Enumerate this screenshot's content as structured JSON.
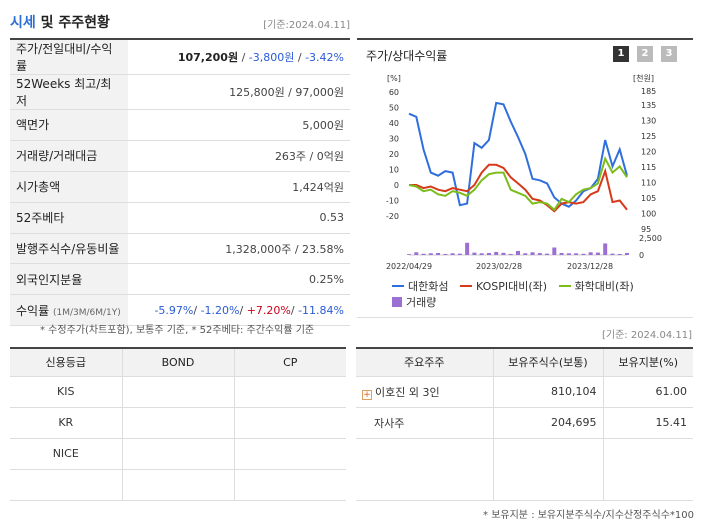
{
  "header": {
    "title_hl": "시세",
    "title_rest": " 및 주주현황",
    "date": "[기준:2024.04.11]"
  },
  "quote": {
    "rows": [
      {
        "label": "주가/전일대비/수익률",
        "price": "107,200원",
        "change": "-3,800원",
        "rate": "-3.42%"
      },
      {
        "label": "52Weeks 최고/최저",
        "value": "125,800원 / 97,000원"
      },
      {
        "label": "액면가",
        "value": "5,000원"
      },
      {
        "label": "거래량/거래대금",
        "value": "263주 / 0억원"
      },
      {
        "label": "시가총액",
        "value": "1,424억원"
      },
      {
        "label": "52주베타",
        "value": "0.53"
      },
      {
        "label": "발행주식수/유동비율",
        "value": "1,328,000주 / 23.58%"
      },
      {
        "label": "외국인지분율",
        "value": "0.25%"
      },
      {
        "label": "수익률",
        "label_sub": "(1M/3M/6M/1Y)",
        "r1": "-5.97%",
        "r2": "-1.20%",
        "r3": "+7.20%",
        "r4": "-11.84%"
      }
    ],
    "note": "* 수정주가(차트포함), 보통주 기준, * 52주베타: 주간수익률 기준"
  },
  "chart_panel": {
    "title": "주가/상대수익률",
    "buttons": [
      "1",
      "2",
      "3"
    ]
  },
  "chart_data": {
    "type": "line",
    "left_axis_label": "[%]",
    "right_axis_label": "[천원]",
    "left_ticks": [
      60,
      50,
      40,
      30,
      20,
      10,
      0,
      -10,
      -20
    ],
    "right_ticks": [
      135,
      130,
      125,
      120,
      115,
      110,
      105,
      100,
      95
    ],
    "right_top_tick": "185",
    "volume_ticks": [
      "2,500",
      "0"
    ],
    "x_labels": [
      "2022/04/29",
      "2023/02/28",
      "2023/12/28"
    ],
    "ylim_left": [
      -20,
      60
    ],
    "series": [
      {
        "name": "대한화섬",
        "color": "#2f6fdd",
        "values": [
          46,
          44,
          23,
          8,
          6,
          9,
          8,
          -13,
          -12,
          27,
          24,
          29,
          53,
          52,
          41,
          31,
          20,
          4,
          3,
          1,
          -8,
          -12,
          -14,
          -10,
          -4,
          -2,
          4,
          29,
          12,
          23,
          6
        ]
      },
      {
        "name": "KOSPI대비(좌)",
        "color": "#d63a1a",
        "values": [
          0,
          0,
          -2,
          -1,
          -3,
          -4,
          -2,
          -3,
          -4,
          0,
          8,
          13,
          13,
          11,
          5,
          1,
          -3,
          -9,
          -10,
          -13,
          -17,
          -12,
          -11,
          -12,
          -11,
          -6,
          -4,
          9,
          -11,
          -10,
          -16
        ]
      },
      {
        "name": "화학대비(좌)",
        "color": "#7cbc1c",
        "values": [
          0,
          -1,
          -4,
          -3,
          -6,
          -7,
          -4,
          -5,
          -7,
          -3,
          3,
          7,
          8,
          8,
          -3,
          -5,
          -7,
          -12,
          -11,
          -12,
          -16,
          -9,
          -11,
          -6,
          -3,
          -2,
          1,
          17,
          8,
          12,
          5
        ]
      }
    ],
    "volume": {
      "name": "거래량",
      "color": "#9b6fd4",
      "values": [
        120,
        400,
        180,
        250,
        300,
        150,
        250,
        200,
        1800,
        350,
        250,
        300,
        450,
        320,
        150,
        600,
        250,
        400,
        280,
        200,
        1100,
        300,
        250,
        250,
        180,
        400,
        350,
        1700,
        200,
        150,
        300
      ]
    },
    "volume_max": 2500
  },
  "date2": "[기준: 2024.04.11]",
  "credit": {
    "headers": [
      "신용등급",
      "BOND",
      "CP"
    ],
    "rows": [
      "KIS",
      "KR",
      "NICE",
      ""
    ]
  },
  "holders": {
    "headers": [
      "주요주주",
      "보유주식수(보통)",
      "보유지분(%)"
    ],
    "rows": [
      {
        "name": "이호진 외 3인",
        "shares": "810,104",
        "pct": "61.00"
      },
      {
        "name": "자사주",
        "shares": "204,695",
        "pct": "15.41"
      },
      {
        "name": "",
        "shares": "",
        "pct": ""
      }
    ],
    "note": "* 보유지분 : 보유지분주식수/지수산정주식수*100"
  }
}
